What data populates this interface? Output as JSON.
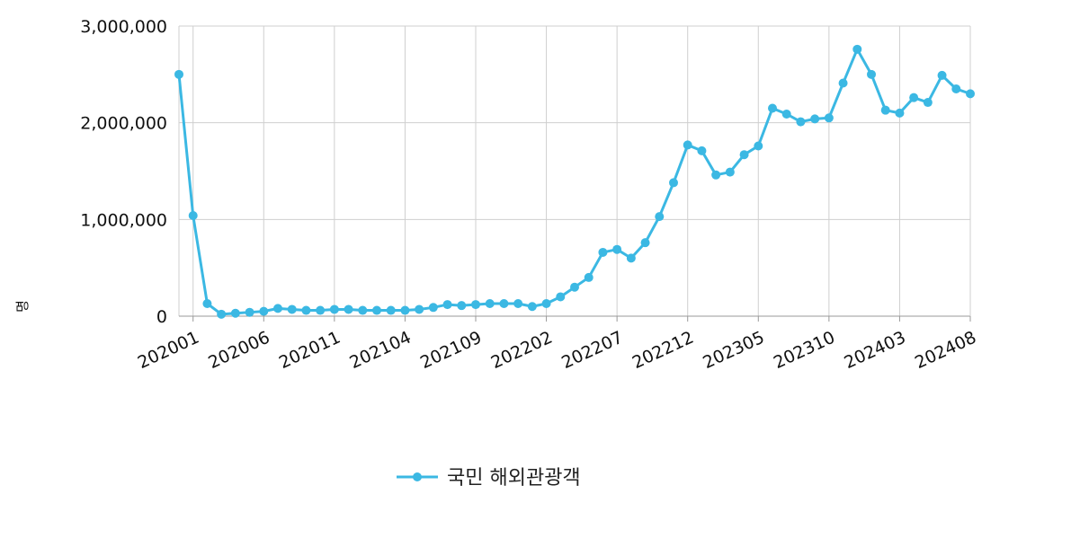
{
  "chart_data": {
    "type": "line",
    "ylabel": "명",
    "ylim": [
      0,
      3000000
    ],
    "y_ticks": [
      0,
      1000000,
      2000000,
      3000000
    ],
    "y_tick_labels": [
      "0",
      "1,000,000",
      "2,000,000",
      "3,000,000"
    ],
    "x_tick_labels": [
      "202001",
      "202006",
      "202011",
      "202104",
      "202109",
      "202202",
      "202207",
      "202212",
      "202305",
      "202310",
      "202403",
      "202408"
    ],
    "grid": true,
    "legend_position": "bottom",
    "series": [
      {
        "name": "국민 해외관광객",
        "color": "#3bb8e3",
        "x": [
          "201912",
          "202001",
          "202002",
          "202003",
          "202004",
          "202005",
          "202006",
          "202007",
          "202008",
          "202009",
          "202010",
          "202011",
          "202012",
          "202101",
          "202102",
          "202103",
          "202104",
          "202105",
          "202106",
          "202107",
          "202108",
          "202109",
          "202110",
          "202111",
          "202112",
          "202201",
          "202202",
          "202203",
          "202204",
          "202205",
          "202206",
          "202207",
          "202208",
          "202209",
          "202210",
          "202211",
          "202212",
          "202301",
          "202302",
          "202303",
          "202304",
          "202305",
          "202306",
          "202307",
          "202308",
          "202309",
          "202310",
          "202311",
          "202312",
          "202401",
          "202402",
          "202403",
          "202404",
          "202405",
          "202406",
          "202407",
          "202408"
        ],
        "values": [
          2500000,
          1040000,
          130000,
          20000,
          30000,
          40000,
          50000,
          80000,
          70000,
          60000,
          60000,
          70000,
          70000,
          60000,
          60000,
          60000,
          60000,
          70000,
          90000,
          120000,
          110000,
          120000,
          130000,
          130000,
          130000,
          100000,
          130000,
          200000,
          300000,
          400000,
          660000,
          690000,
          600000,
          760000,
          1030000,
          1380000,
          1770000,
          1710000,
          1460000,
          1490000,
          1670000,
          1760000,
          2150000,
          2090000,
          2010000,
          2040000,
          2050000,
          2410000,
          2760000,
          2500000,
          2130000,
          2100000,
          2260000,
          2210000,
          2490000,
          2350000,
          2300000
        ]
      }
    ]
  }
}
